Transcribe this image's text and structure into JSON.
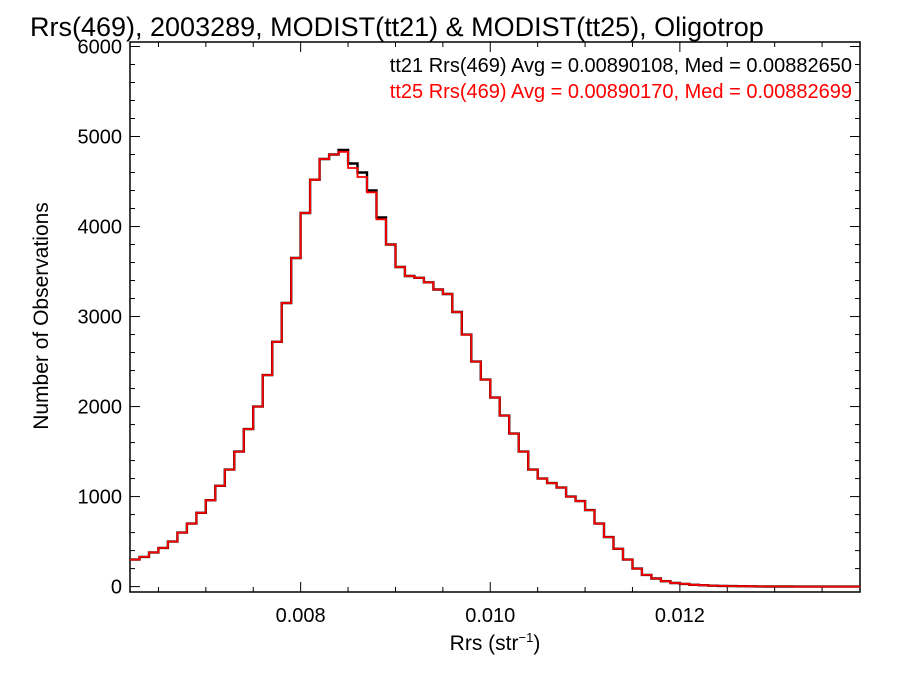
{
  "chart_data": {
    "type": "line",
    "title": "Rrs(469), 2003289, MODIST(tt21) & MODIST(tt25), Oligotrop",
    "xlabel": "Rrs (str",
    "xlabel_sup": "−1",
    "xlabel_close": ")",
    "ylabel": "Number of Observations",
    "xlim": [
      0.0062,
      0.0139
    ],
    "ylim": [
      -60,
      6050
    ],
    "xticks": [
      0.008,
      0.01,
      0.012
    ],
    "xtick_labels": [
      "0.008",
      "0.010",
      "0.012"
    ],
    "yticks": [
      0,
      1000,
      2000,
      3000,
      4000,
      5000,
      6000
    ],
    "ytick_labels": [
      "0",
      "1000",
      "2000",
      "3000",
      "4000",
      "5000",
      "6000"
    ],
    "legend_position": "top-right",
    "annotations": [
      {
        "text": "tt21 Rrs(469) Avg = 0.00890108, Med = 0.00882650",
        "color": "#000000"
      },
      {
        "text": "tt25 Rrs(469) Avg = 0.00890170, Med = 0.00882699",
        "color": "#ff0000"
      }
    ],
    "series": [
      {
        "color": "#000000",
        "x": [
          0.0062,
          0.0063,
          0.0064,
          0.0065,
          0.0066,
          0.0067,
          0.0068,
          0.0069,
          0.007,
          0.0071,
          0.0072,
          0.0073,
          0.0074,
          0.0075,
          0.0076,
          0.0077,
          0.0078,
          0.0079,
          0.008,
          0.0081,
          0.0082,
          0.0083,
          0.0084,
          0.0085,
          0.0086,
          0.0087,
          0.0088,
          0.0089,
          0.009,
          0.0091,
          0.0092,
          0.0093,
          0.0094,
          0.0095,
          0.0096,
          0.0097,
          0.0098,
          0.0099,
          0.01,
          0.0101,
          0.0102,
          0.0103,
          0.0104,
          0.0105,
          0.0106,
          0.0107,
          0.0108,
          0.0109,
          0.011,
          0.0111,
          0.0112,
          0.0113,
          0.0114,
          0.0115,
          0.0116,
          0.0117,
          0.0118,
          0.0119,
          0.012,
          0.0121,
          0.0122,
          0.0123,
          0.0124,
          0.0125,
          0.0126,
          0.0127,
          0.0128,
          0.0129,
          0.013,
          0.0132,
          0.0134,
          0.0136,
          0.0139
        ],
        "y": [
          300,
          330,
          380,
          430,
          500,
          600,
          700,
          820,
          960,
          1120,
          1300,
          1500,
          1750,
          2000,
          2350,
          2720,
          3150,
          3650,
          4150,
          4520,
          4750,
          4800,
          4850,
          4700,
          4600,
          4400,
          4100,
          3800,
          3550,
          3450,
          3430,
          3380,
          3300,
          3250,
          3050,
          2800,
          2500,
          2300,
          2100,
          1900,
          1700,
          1500,
          1300,
          1200,
          1150,
          1100,
          1000,
          950,
          850,
          700,
          550,
          420,
          300,
          200,
          130,
          90,
          60,
          40,
          30,
          20,
          15,
          10,
          8,
          6,
          4,
          3,
          2,
          1,
          1,
          0,
          0,
          0,
          0
        ]
      },
      {
        "color": "#ff0000",
        "x": [
          0.0062,
          0.0063,
          0.0064,
          0.0065,
          0.0066,
          0.0067,
          0.0068,
          0.0069,
          0.007,
          0.0071,
          0.0072,
          0.0073,
          0.0074,
          0.0075,
          0.0076,
          0.0077,
          0.0078,
          0.0079,
          0.008,
          0.0081,
          0.0082,
          0.0083,
          0.0084,
          0.0085,
          0.0086,
          0.0087,
          0.0088,
          0.0089,
          0.009,
          0.0091,
          0.0092,
          0.0093,
          0.0094,
          0.0095,
          0.0096,
          0.0097,
          0.0098,
          0.0099,
          0.01,
          0.0101,
          0.0102,
          0.0103,
          0.0104,
          0.0105,
          0.0106,
          0.0107,
          0.0108,
          0.0109,
          0.011,
          0.0111,
          0.0112,
          0.0113,
          0.0114,
          0.0115,
          0.0116,
          0.0117,
          0.0118,
          0.0119,
          0.012,
          0.0121,
          0.0122,
          0.0123,
          0.0124,
          0.0125,
          0.0126,
          0.0127,
          0.0128,
          0.0129,
          0.013,
          0.0132,
          0.0134,
          0.0136,
          0.0139
        ],
        "y": [
          300,
          330,
          380,
          430,
          500,
          600,
          700,
          820,
          960,
          1120,
          1300,
          1500,
          1750,
          2000,
          2350,
          2720,
          3150,
          3650,
          4150,
          4520,
          4750,
          4800,
          4830,
          4650,
          4550,
          4380,
          4080,
          3800,
          3550,
          3450,
          3430,
          3380,
          3300,
          3250,
          3050,
          2800,
          2500,
          2300,
          2100,
          1900,
          1700,
          1500,
          1300,
          1200,
          1150,
          1100,
          1000,
          950,
          850,
          700,
          550,
          420,
          300,
          200,
          130,
          90,
          60,
          40,
          30,
          20,
          15,
          10,
          8,
          6,
          4,
          3,
          2,
          1,
          1,
          0,
          0,
          0,
          0
        ]
      }
    ]
  }
}
